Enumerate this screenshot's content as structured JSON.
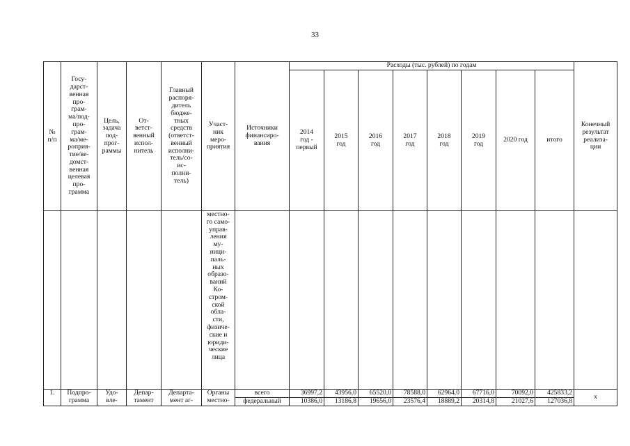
{
  "page_number": "33",
  "header": {
    "num": "№\nп/п",
    "program": "Госу-\nдарст-\nвенная\nпро-\nграм-\nма/под-\nпро-\nграм-\nма/ме-\nроприя-\nтие/ве-\nдомст-\nвенная\nцелевая\nпро-\nграмма",
    "goal": "Цель,\nзадача\nпод-\nпрог-\nраммы",
    "responsible": "От-\nветст-\nвенный\nиспол-\nнитель",
    "manager": "Главный\nраспоря-\nдитель\nбюдже-\nтных\nсредств\n(ответст-\nвенный\nисполни-\nтель/со-\nис-\nполни-\nтель)",
    "participant": "Участ-\nник\nмеро-\nприятия",
    "sources": "Источники\nфинансиро-\nвания",
    "expenses_group": "Расходы (тыс. рублей) по годам",
    "years": [
      "2014\nгод -\nпервый",
      "2015\nгод",
      "2016\nгод",
      "2017\nгод",
      "2018\nгод",
      "2019\nгод",
      "2020 год",
      "итого"
    ],
    "result": "Конечный\nрезультат\nреализа-\nции"
  },
  "continuation": {
    "participant": "местно-\nго само-\nуправ-\nления\nму-\nници-\nпаль-\nных\nобразо-\nваний\nКо-\nстром-\nской\nобла-\nсти,\nфизиче-\nские и\nюриди-\nческие\nлица"
  },
  "row1": {
    "num": "1.",
    "program": "Подпро-\nграмма",
    "goal": "Удо-\nвле-",
    "responsible": "Депар-\nтамент",
    "manager": "Департа-\nмент аг-",
    "participant": "Органы\nместно-",
    "result": "х",
    "lines": [
      {
        "source": "всего",
        "values": [
          "36997,2",
          "43956,0",
          "65520,0",
          "78588,0",
          "62964,0",
          "67716,0",
          "70092,0",
          "425833,2"
        ]
      },
      {
        "source": "федеральный",
        "values": [
          "10386,0",
          "13186,8",
          "19656,0",
          "23576,4",
          "18889,2",
          "20314,8",
          "21027,6",
          "127036,8"
        ]
      }
    ]
  }
}
